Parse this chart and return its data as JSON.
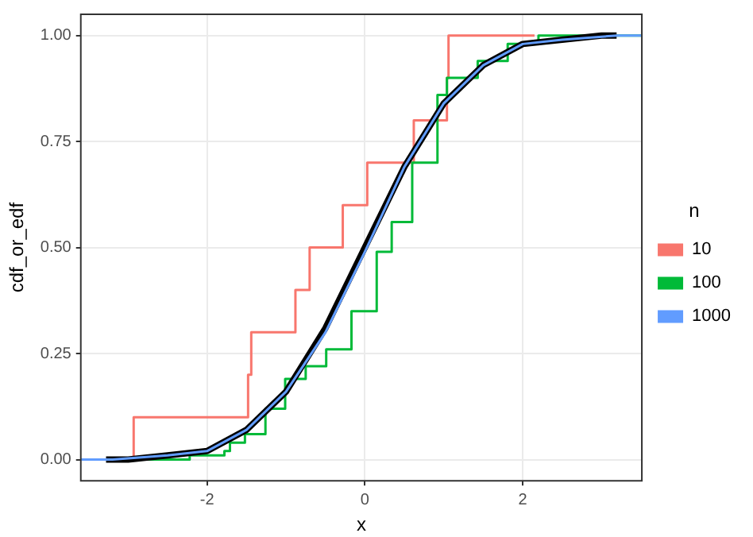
{
  "chart_data": {
    "type": "step",
    "xlabel": "x",
    "ylabel": "cdf_or_edf",
    "legend_title": "n",
    "legend": "right",
    "grid": true,
    "xlim": [
      -3.6,
      3.51
    ],
    "ylim": [
      -0.05,
      1.05
    ],
    "xticks": [
      -2,
      0,
      2
    ],
    "yticks": [
      {
        "value": 0,
        "label": "0.00"
      },
      {
        "value": 0.25,
        "label": "0.25"
      },
      {
        "value": 0.5,
        "label": "0.50"
      },
      {
        "value": 0.75,
        "label": "0.75"
      },
      {
        "value": 1,
        "label": "1.00"
      }
    ],
    "series": [
      {
        "name": "10",
        "color": "#f8766d",
        "x": [
          -3.6,
          -2.93,
          -1.48,
          -1.44,
          -0.88,
          -0.7,
          -0.28,
          0.03,
          0.62,
          1.04,
          1.06,
          2.15
        ],
        "values": [
          0,
          0.1,
          0.2,
          0.3,
          0.4,
          0.5,
          0.6,
          0.7,
          0.8,
          0.9,
          1,
          1
        ]
      },
      {
        "name": "100",
        "color": "#00ba38",
        "x": [
          -3.6,
          -2.22,
          -1.78,
          -1.71,
          -1.52,
          -1.26,
          -1.01,
          -0.75,
          -0.49,
          -0.17,
          0.15,
          0.34,
          0.6,
          0.92,
          1.04,
          1.43,
          1.81,
          2.2,
          3.51
        ],
        "values": [
          0,
          0.01,
          0.02,
          0.04,
          0.06,
          0.12,
          0.19,
          0.22,
          0.26,
          0.35,
          0.49,
          0.56,
          0.7,
          0.86,
          0.9,
          0.94,
          0.98,
          1,
          1
        ]
      },
      {
        "type": "line",
        "color": "#000000",
        "x": [
          -3.28,
          -3,
          -2.5,
          -2,
          -1.5,
          -1,
          -0.5,
          0,
          0.5,
          1,
          1.5,
          2,
          2.5,
          3,
          3.19
        ],
        "values": [
          0,
          0,
          0.01,
          0.02,
          0.07,
          0.16,
          0.31,
          0.5,
          0.69,
          0.84,
          0.93,
          0.98,
          0.99,
          1,
          1
        ]
      },
      {
        "name": "1000",
        "type": "line",
        "color": "#619cff",
        "x": [
          -3.6,
          -3.2,
          -2.5,
          -2,
          -1.5,
          -1,
          -0.5,
          0,
          0.5,
          1,
          1.5,
          2,
          2.5,
          3.2,
          3.51
        ],
        "values": [
          0,
          0,
          0.01,
          0.02,
          0.07,
          0.16,
          0.3,
          0.49,
          0.69,
          0.84,
          0.93,
          0.98,
          0.99,
          1,
          1
        ]
      }
    ]
  }
}
